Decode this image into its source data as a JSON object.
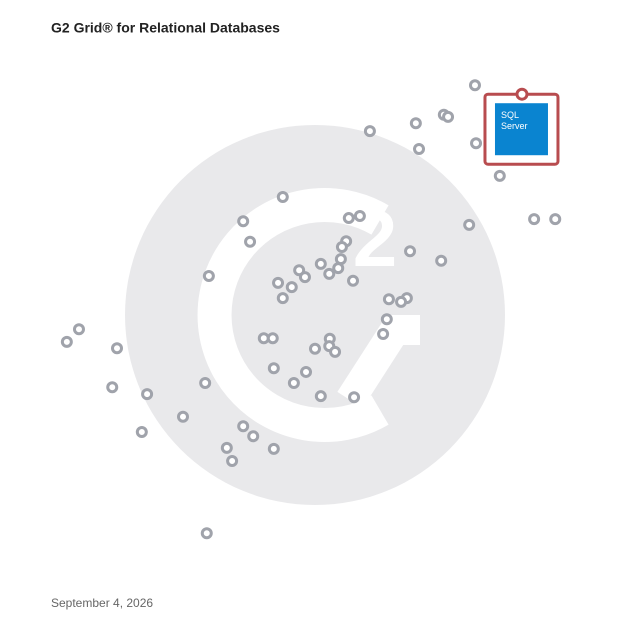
{
  "chart_data": {
    "type": "scatter",
    "title": "G2 Grid® for Relational Databases",
    "date": "September 4, 2026",
    "xlim": [
      0,
      100
    ],
    "ylim": [
      0,
      100
    ],
    "color": "#a0a3ab",
    "x": [
      80.3,
      74.4,
      75.2,
      69.1,
      60.4,
      80.5,
      69.7,
      85.0,
      43.9,
      91.5,
      95.5,
      79.2,
      36.4,
      56.4,
      58.5,
      37.7,
      55.9,
      55.1,
      68.0,
      73.9,
      54.9,
      51.1,
      54.4,
      47.0,
      48.1,
      52.7,
      29.9,
      43.0,
      45.6,
      57.2,
      43.9,
      64.0,
      67.4,
      66.3,
      63.6,
      5.3,
      3.0,
      62.9,
      40.3,
      42.0,
      52.8,
      52.7,
      53.8,
      50.0,
      12.5,
      42.2,
      48.3,
      46.0,
      29.2,
      11.6,
      18.2,
      51.1,
      57.4,
      25.0,
      17.2,
      36.4,
      38.3,
      33.3,
      42.2,
      34.3,
      29.5
    ],
    "values": [
      93.5,
      87.9,
      87.5,
      86.3,
      84.8,
      82.5,
      81.4,
      76.3,
      72.3,
      68.1,
      68.1,
      67.0,
      67.7,
      68.3,
      68.7,
      63.8,
      63.9,
      62.8,
      62.0,
      60.2,
      60.5,
      59.6,
      58.8,
      58.4,
      57.1,
      57.7,
      57.3,
      56.0,
      55.2,
      56.4,
      53.1,
      52.9,
      53.1,
      52.4,
      49.1,
      47.2,
      44.8,
      46.3,
      45.5,
      45.5,
      45.4,
      44.0,
      42.9,
      43.5,
      43.6,
      39.8,
      39.1,
      37.0,
      37.0,
      36.2,
      34.9,
      34.5,
      34.3,
      30.6,
      27.7,
      28.8,
      26.9,
      24.7,
      24.5,
      22.2,
      8.5
    ],
    "highlight": {
      "label": "SQL Server",
      "x": 89.2,
      "y": 91.8,
      "color": "#b84c4f",
      "logo_color": "#0a84d0"
    }
  }
}
